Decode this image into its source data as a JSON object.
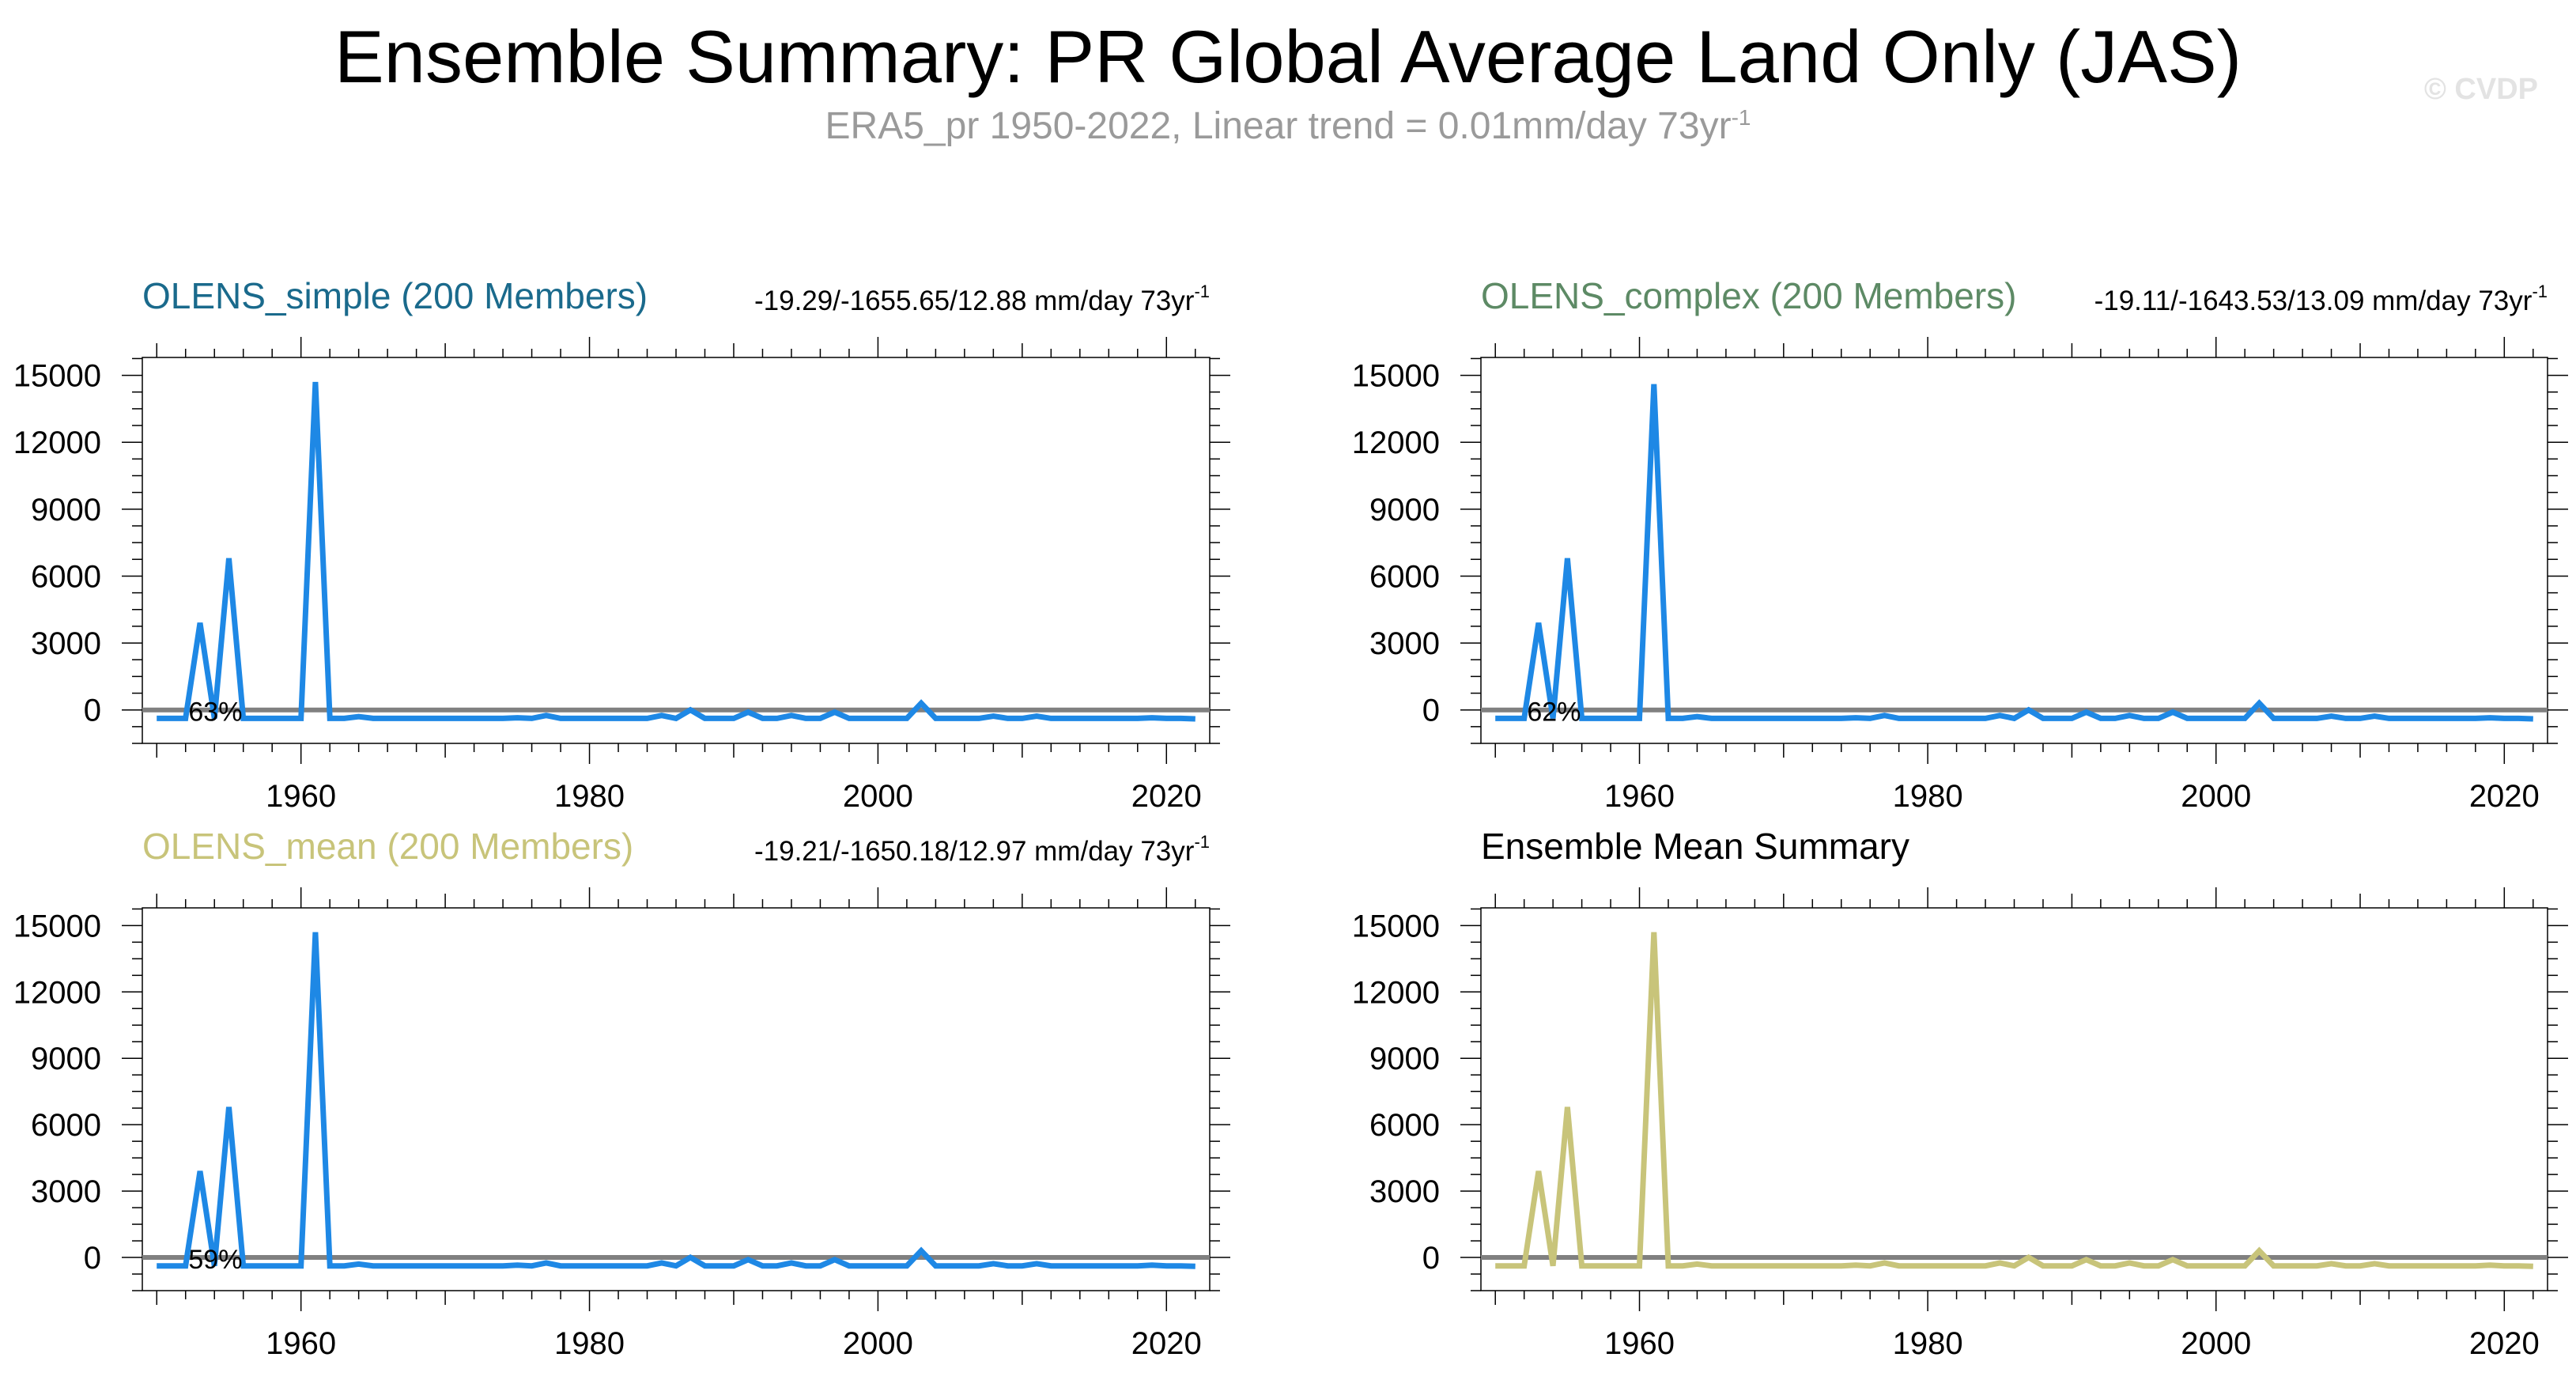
{
  "title": "Ensemble Summary: PR Global Average Land Only (JAS)",
  "subtitle": {
    "text": "ERA5_pr 1950-2022, Linear trend = 0.01mm/day 73yr",
    "superscript": "-1"
  },
  "watermark": "© CVDP",
  "colors": {
    "simple_title": "#1a6a8c",
    "complex_title": "#5d8a65",
    "mean_title": "#c8c47a",
    "line_blue": "#1e88e5",
    "line_olive": "#c8c47a",
    "zero_line": "#808080"
  },
  "chart_data": [
    {
      "id": "olens-simple",
      "type": "line",
      "title": "OLENS_simple (200 Members)",
      "title_color": "#1a6a8c",
      "trend_label": "-19.29/-1655.65/12.88 mm/day 73yr",
      "trend_sup": "-1",
      "annotation": "63%",
      "line_color": "#1e88e5",
      "x": [
        1950,
        1951,
        1952,
        1953,
        1954,
        1955,
        1956,
        1957,
        1958,
        1959,
        1960,
        1961,
        1962,
        1963,
        1964,
        1965,
        1966,
        1967,
        1968,
        1969,
        1970,
        1971,
        1972,
        1973,
        1974,
        1975,
        1976,
        1977,
        1978,
        1979,
        1980,
        1981,
        1982,
        1983,
        1984,
        1985,
        1986,
        1987,
        1988,
        1989,
        1990,
        1991,
        1992,
        1993,
        1994,
        1995,
        1996,
        1997,
        1998,
        1999,
        2000,
        2001,
        2002,
        2003,
        2004,
        2005,
        2006,
        2007,
        2008,
        2009,
        2010,
        2011,
        2012,
        2013,
        2014,
        2015,
        2016,
        2017,
        2018,
        2019,
        2020,
        2021,
        2022
      ],
      "values": [
        -380,
        -380,
        -380,
        3900,
        -380,
        6800,
        -380,
        -380,
        -380,
        -380,
        -380,
        14700,
        -380,
        -380,
        -300,
        -380,
        -380,
        -380,
        -380,
        -380,
        -380,
        -380,
        -380,
        -380,
        -380,
        -350,
        -380,
        -250,
        -380,
        -380,
        -380,
        -380,
        -380,
        -380,
        -380,
        -250,
        -380,
        0,
        -380,
        -380,
        -380,
        -100,
        -380,
        -380,
        -250,
        -380,
        -380,
        -100,
        -380,
        -380,
        -380,
        -380,
        -380,
        300,
        -380,
        -380,
        -380,
        -380,
        -280,
        -380,
        -380,
        -280,
        -380,
        -380,
        -380,
        -380,
        -380,
        -380,
        -380,
        -350,
        -380,
        -380,
        -400
      ],
      "xticks": [
        1960,
        1980,
        2000,
        2020
      ],
      "yticks": [
        0,
        3000,
        6000,
        9000,
        12000,
        15000
      ],
      "xlim": [
        1949,
        2023
      ],
      "ylim": [
        -1500,
        15800
      ]
    },
    {
      "id": "olens-complex",
      "type": "line",
      "title": "OLENS_complex (200 Members)",
      "title_color": "#5d8a65",
      "trend_label": "-19.11/-1643.53/13.09 mm/day 73yr",
      "trend_sup": "-1",
      "annotation": "62%",
      "line_color": "#1e88e5",
      "x": [
        1950,
        1951,
        1952,
        1953,
        1954,
        1955,
        1956,
        1957,
        1958,
        1959,
        1960,
        1961,
        1962,
        1963,
        1964,
        1965,
        1966,
        1967,
        1968,
        1969,
        1970,
        1971,
        1972,
        1973,
        1974,
        1975,
        1976,
        1977,
        1978,
        1979,
        1980,
        1981,
        1982,
        1983,
        1984,
        1985,
        1986,
        1987,
        1988,
        1989,
        1990,
        1991,
        1992,
        1993,
        1994,
        1995,
        1996,
        1997,
        1998,
        1999,
        2000,
        2001,
        2002,
        2003,
        2004,
        2005,
        2006,
        2007,
        2008,
        2009,
        2010,
        2011,
        2012,
        2013,
        2014,
        2015,
        2016,
        2017,
        2018,
        2019,
        2020,
        2021,
        2022
      ],
      "values": [
        -380,
        -380,
        -380,
        3900,
        -380,
        6800,
        -380,
        -380,
        -380,
        -380,
        -380,
        14600,
        -380,
        -380,
        -300,
        -380,
        -380,
        -380,
        -380,
        -380,
        -380,
        -380,
        -380,
        -380,
        -380,
        -350,
        -380,
        -250,
        -380,
        -380,
        -380,
        -380,
        -380,
        -380,
        -380,
        -250,
        -380,
        0,
        -380,
        -380,
        -380,
        -100,
        -380,
        -380,
        -250,
        -380,
        -380,
        -100,
        -380,
        -380,
        -380,
        -380,
        -380,
        300,
        -380,
        -380,
        -380,
        -380,
        -280,
        -380,
        -380,
        -280,
        -380,
        -380,
        -380,
        -380,
        -380,
        -380,
        -380,
        -350,
        -380,
        -380,
        -400
      ],
      "xticks": [
        1960,
        1980,
        2000,
        2020
      ],
      "yticks": [
        0,
        3000,
        6000,
        9000,
        12000,
        15000
      ],
      "xlim": [
        1949,
        2023
      ],
      "ylim": [
        -1500,
        15800
      ]
    },
    {
      "id": "olens-mean",
      "type": "line",
      "title": "OLENS_mean (200 Members)",
      "title_color": "#c8c47a",
      "trend_label": "-19.21/-1650.18/12.97 mm/day 73yr",
      "trend_sup": "-1",
      "annotation": "59%",
      "line_color": "#1e88e5",
      "x": [
        1950,
        1951,
        1952,
        1953,
        1954,
        1955,
        1956,
        1957,
        1958,
        1959,
        1960,
        1961,
        1962,
        1963,
        1964,
        1965,
        1966,
        1967,
        1968,
        1969,
        1970,
        1971,
        1972,
        1973,
        1974,
        1975,
        1976,
        1977,
        1978,
        1979,
        1980,
        1981,
        1982,
        1983,
        1984,
        1985,
        1986,
        1987,
        1988,
        1989,
        1990,
        1991,
        1992,
        1993,
        1994,
        1995,
        1996,
        1997,
        1998,
        1999,
        2000,
        2001,
        2002,
        2003,
        2004,
        2005,
        2006,
        2007,
        2008,
        2009,
        2010,
        2011,
        2012,
        2013,
        2014,
        2015,
        2016,
        2017,
        2018,
        2019,
        2020,
        2021,
        2022
      ],
      "values": [
        -380,
        -380,
        -380,
        3900,
        -380,
        6800,
        -380,
        -380,
        -380,
        -380,
        -380,
        14700,
        -380,
        -380,
        -300,
        -380,
        -380,
        -380,
        -380,
        -380,
        -380,
        -380,
        -380,
        -380,
        -380,
        -350,
        -380,
        -250,
        -380,
        -380,
        -380,
        -380,
        -380,
        -380,
        -380,
        -250,
        -380,
        0,
        -380,
        -380,
        -380,
        -100,
        -380,
        -380,
        -250,
        -380,
        -380,
        -100,
        -380,
        -380,
        -380,
        -380,
        -380,
        300,
        -380,
        -380,
        -380,
        -380,
        -280,
        -380,
        -380,
        -280,
        -380,
        -380,
        -380,
        -380,
        -380,
        -380,
        -380,
        -350,
        -380,
        -380,
        -400
      ],
      "xticks": [
        1960,
        1980,
        2000,
        2020
      ],
      "yticks": [
        0,
        3000,
        6000,
        9000,
        12000,
        15000
      ],
      "xlim": [
        1949,
        2023
      ],
      "ylim": [
        -1500,
        15800
      ]
    },
    {
      "id": "ensemble-mean-summary",
      "type": "line",
      "title": "Ensemble Mean Summary",
      "title_color": "#000000",
      "trend_label": "",
      "trend_sup": "",
      "annotation": "",
      "line_color": "#c8c47a",
      "x": [
        1950,
        1951,
        1952,
        1953,
        1954,
        1955,
        1956,
        1957,
        1958,
        1959,
        1960,
        1961,
        1962,
        1963,
        1964,
        1965,
        1966,
        1967,
        1968,
        1969,
        1970,
        1971,
        1972,
        1973,
        1974,
        1975,
        1976,
        1977,
        1978,
        1979,
        1980,
        1981,
        1982,
        1983,
        1984,
        1985,
        1986,
        1987,
        1988,
        1989,
        1990,
        1991,
        1992,
        1993,
        1994,
        1995,
        1996,
        1997,
        1998,
        1999,
        2000,
        2001,
        2002,
        2003,
        2004,
        2005,
        2006,
        2007,
        2008,
        2009,
        2010,
        2011,
        2012,
        2013,
        2014,
        2015,
        2016,
        2017,
        2018,
        2019,
        2020,
        2021,
        2022
      ],
      "values": [
        -380,
        -380,
        -380,
        3900,
        -380,
        6800,
        -380,
        -380,
        -380,
        -380,
        -380,
        14700,
        -380,
        -380,
        -300,
        -380,
        -380,
        -380,
        -380,
        -380,
        -380,
        -380,
        -380,
        -380,
        -380,
        -350,
        -380,
        -250,
        -380,
        -380,
        -380,
        -380,
        -380,
        -380,
        -380,
        -250,
        -380,
        0,
        -380,
        -380,
        -380,
        -100,
        -380,
        -380,
        -250,
        -380,
        -380,
        -100,
        -380,
        -380,
        -380,
        -380,
        -380,
        300,
        -380,
        -380,
        -380,
        -380,
        -280,
        -380,
        -380,
        -280,
        -380,
        -380,
        -380,
        -380,
        -380,
        -380,
        -380,
        -350,
        -380,
        -380,
        -400
      ],
      "xticks": [
        1960,
        1980,
        2000,
        2020
      ],
      "yticks": [
        0,
        3000,
        6000,
        9000,
        12000,
        15000
      ],
      "xlim": [
        1949,
        2023
      ],
      "ylim": [
        -1500,
        15800
      ]
    }
  ]
}
